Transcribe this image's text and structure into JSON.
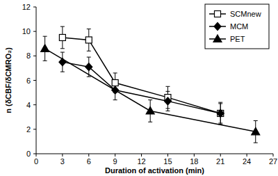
{
  "chart_data": {
    "type": "line",
    "x_label": "Duration of activation (min)",
    "y_label": "n (δCBF/δCMRO₂)",
    "xlim": [
      0,
      27
    ],
    "xticks": [
      0,
      3,
      6,
      9,
      12,
      15,
      18,
      21,
      24,
      27
    ],
    "ylim": [
      0,
      12
    ],
    "yticks": [
      0,
      2,
      4,
      6,
      8,
      10,
      12
    ],
    "grid": false,
    "legend": "top-right",
    "series": [
      {
        "name": "SCMnew",
        "color": "#000000",
        "marker": "open-square",
        "line_style": "solid",
        "x": [
          3,
          6,
          9,
          15,
          21
        ],
        "values": [
          9.5,
          9.3,
          5.8,
          4.6,
          3.3
        ],
        "errors": [
          0.9,
          0.9,
          0.8,
          0.9,
          0.9
        ]
      },
      {
        "name": "MCM",
        "color": "#000000",
        "marker": "diamond",
        "line_style": "solid",
        "x": [
          3,
          6,
          9,
          15,
          21
        ],
        "values": [
          7.5,
          7.1,
          5.2,
          4.3,
          3.3
        ],
        "errors": [
          0.8,
          0.8,
          0.8,
          0.8,
          0.8
        ]
      },
      {
        "name": "PET",
        "color": "#000000",
        "marker": "triangle",
        "line_style": "solid",
        "x": [
          1,
          13,
          25
        ],
        "values": [
          8.6,
          3.5,
          1.8
        ],
        "errors": [
          1.0,
          0.9,
          0.9
        ]
      }
    ]
  }
}
